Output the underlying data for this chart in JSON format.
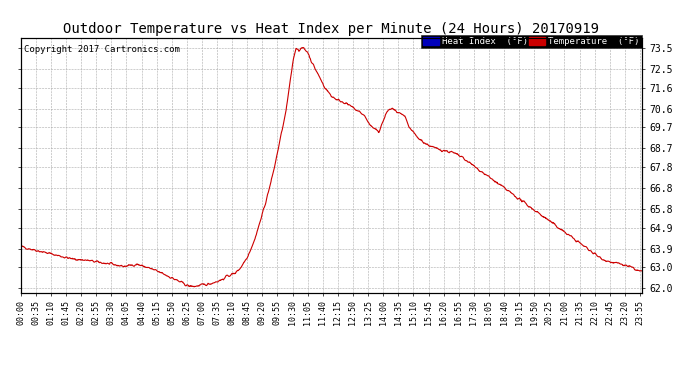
{
  "title": "Outdoor Temperature vs Heat Index per Minute (24 Hours) 20170919",
  "copyright": "Copyright 2017 Cartronics.com",
  "ylabel_right": [
    "73.5",
    "72.5",
    "71.6",
    "70.6",
    "69.7",
    "68.7",
    "67.8",
    "66.8",
    "65.8",
    "64.9",
    "63.9",
    "63.0",
    "62.0"
  ],
  "yvalues": [
    73.5,
    72.5,
    71.6,
    70.6,
    69.7,
    68.7,
    67.8,
    66.8,
    65.8,
    64.9,
    63.9,
    63.0,
    62.0
  ],
  "ylim": [
    61.8,
    74.0
  ],
  "line_color": "#cc0000",
  "background_color": "#ffffff",
  "grid_color": "#aaaaaa",
  "legend_heat_bg": "#0000cc",
  "legend_temp_bg": "#cc0000",
  "title_fontsize": 10,
  "copyright_fontsize": 6.5,
  "tick_label_fontsize": 6,
  "x_tick_interval": 35,
  "total_minutes": 1440,
  "figwidth": 6.9,
  "figheight": 3.75,
  "dpi": 100
}
